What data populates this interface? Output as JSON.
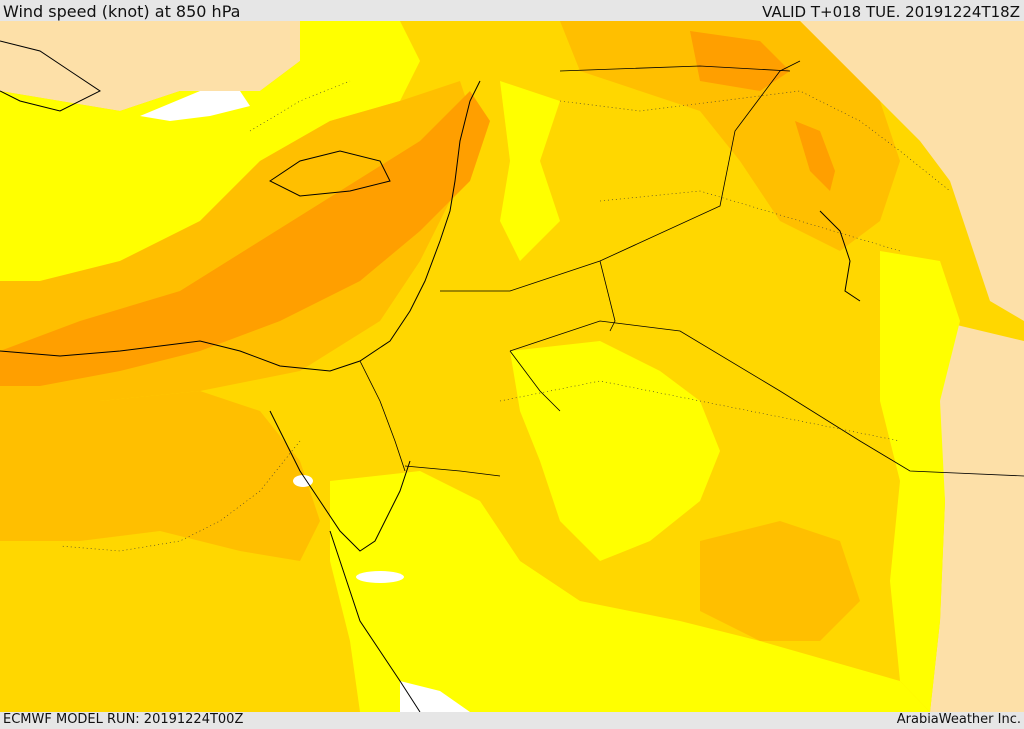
{
  "header": {
    "title": "Wind speed (knot) at 850 hPa",
    "valid_time": "VALID T+018 TUE. 20191224T18Z"
  },
  "footer": {
    "model_run": "ECMWF MODEL RUN: 20191224T00Z",
    "credit": "ArabiaWeather Inc."
  },
  "map": {
    "field": "wind speed 850 hPa",
    "fill_colors": {
      "calm": "#ffffff",
      "very_light": "#fde0a8",
      "light": "#ffff00",
      "moderate": "#ffd700",
      "strong": "#ffbf00",
      "very_strong": "#ff9f00"
    },
    "boundary_color": "#000000"
  }
}
